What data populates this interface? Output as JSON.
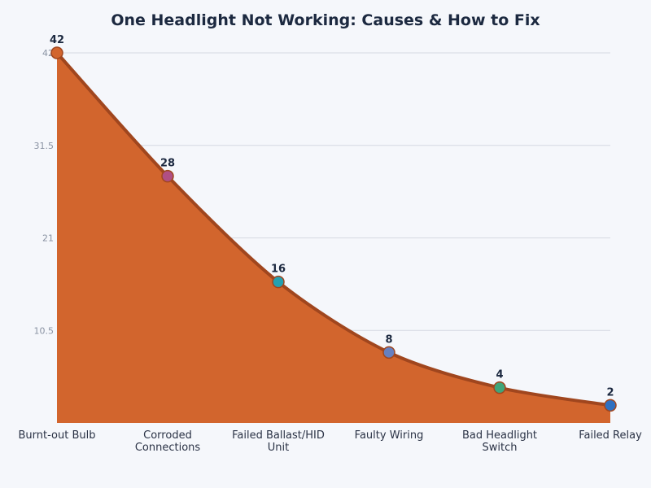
{
  "chart_data": {
    "type": "area",
    "title": "One Headlight Not Working: Causes & How to Fix",
    "xlabel": "",
    "ylabel": "",
    "categories": [
      "Burnt-out Bulb",
      "Corroded Connections",
      "Failed Ballast/HID Unit",
      "Faulty Wiring",
      "Bad Headlight Switch",
      "Failed Relay"
    ],
    "category_lines": [
      [
        "Burnt-out Bulb"
      ],
      [
        "Corroded",
        "Connections"
      ],
      [
        "Failed Ballast/HID",
        "Unit"
      ],
      [
        "Faulty Wiring"
      ],
      [
        "Bad Headlight",
        "Switch"
      ],
      [
        "Failed Relay"
      ]
    ],
    "values": [
      42,
      28,
      16,
      8,
      4,
      2
    ],
    "ylim": [
      0,
      42
    ],
    "yticks": [
      10.5,
      21,
      31.5,
      42
    ],
    "ytick_labels": [
      "10.5",
      "21",
      "31.5",
      "42"
    ],
    "grid": true,
    "legend": "none",
    "colors": {
      "fill": "#d2652d",
      "line": "#a0461e",
      "markers": [
        "#d2652d",
        "#b04f84",
        "#24a0b0",
        "#6680c0",
        "#3fa57a",
        "#2f70c0"
      ],
      "title": "#1c2940",
      "grid": "#d5d9e2"
    }
  }
}
